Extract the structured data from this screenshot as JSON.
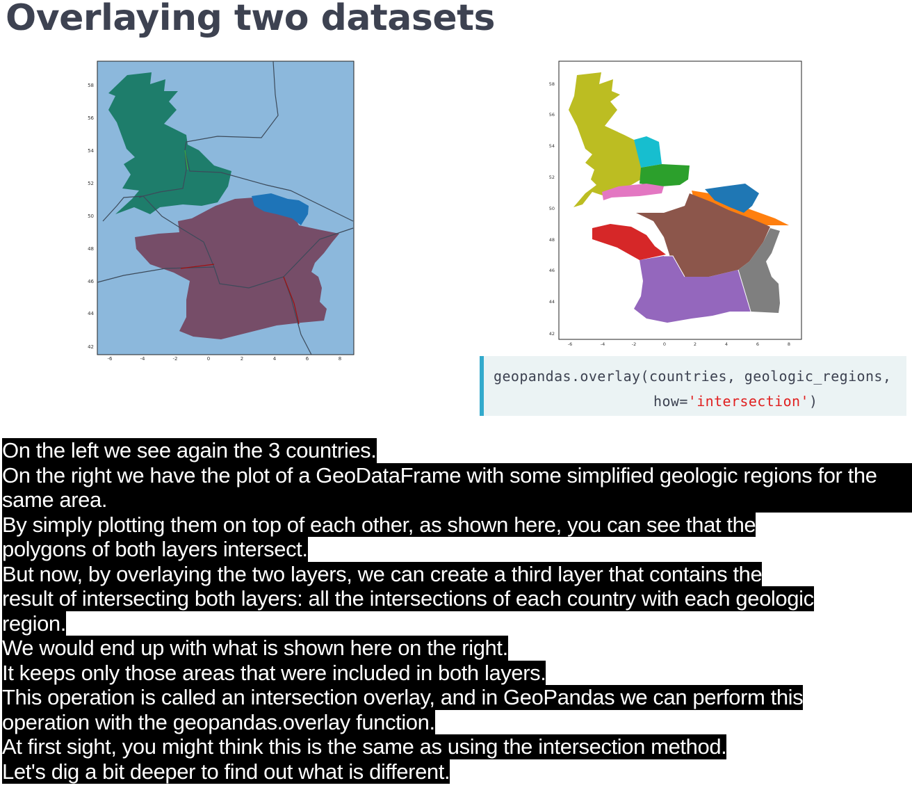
{
  "slide": {
    "title": "Overlaying two datasets"
  },
  "left_plot": {
    "chart_data": {
      "type": "map",
      "xlim": [
        -7,
        9
      ],
      "ylim": [
        41.5,
        59.2
      ],
      "x_ticks": [
        "-6",
        "-4",
        "-2",
        "0",
        "2",
        "4",
        "6",
        "8"
      ],
      "y_ticks": [
        "42",
        "44",
        "46",
        "48",
        "50",
        "52",
        "54",
        "56",
        "58"
      ],
      "background": "#8cb8dc",
      "layers": [
        {
          "name": "United Kingdom",
          "color": "#1e7d6b"
        },
        {
          "name": "France",
          "color": "#764d68"
        },
        {
          "name": "Belgium",
          "color": "#1e74b8"
        }
      ]
    }
  },
  "right_plot": {
    "chart_data": {
      "type": "map",
      "xlim": [
        -7,
        9
      ],
      "ylim": [
        41,
        59.2
      ],
      "x_ticks": [
        "-6",
        "-4",
        "-2",
        "0",
        "2",
        "4",
        "6",
        "8"
      ],
      "y_ticks": [
        "42",
        "44",
        "46",
        "48",
        "50",
        "52",
        "54",
        "56",
        "58"
      ],
      "regions": [
        {
          "color": "#bcbd22"
        },
        {
          "color": "#17becf"
        },
        {
          "color": "#2ca02c"
        },
        {
          "color": "#e377c2"
        },
        {
          "color": "#ff7f0e"
        },
        {
          "color": "#1f77b4"
        },
        {
          "color": "#8c564b"
        },
        {
          "color": "#d62728"
        },
        {
          "color": "#9467bd"
        },
        {
          "color": "#7f7f7f"
        }
      ]
    }
  },
  "code": {
    "line1": "geopandas.overlay(countries, geologic_regions,",
    "line2_pre": "how=",
    "line2_str": "'intersection'",
    "line2_post": ")"
  },
  "captions": [
    "On the left we see again the 3 countries.",
    "On the right we have the plot of a GeoDataFrame with some simplified geologic regions for the same area.",
    "By simply plotting them on top of each other, as shown here, you can see that the",
    "polygons of both layers intersect.",
    "But now, by overlaying the two layers, we can create a third layer that contains the",
    "result of intersecting both layers: all the intersections of each country with each geologic",
    "region.",
    "We would end up with what is shown here on the right.",
    "It keeps only those areas that were included in both layers.",
    "This operation is called an intersection overlay, and in GeoPandas we can perform this",
    "operation with the geopandas.overlay function.",
    "At first sight, you might think this is the same as using the intersection method.",
    "Let's dig a bit deeper to find out what is different."
  ]
}
